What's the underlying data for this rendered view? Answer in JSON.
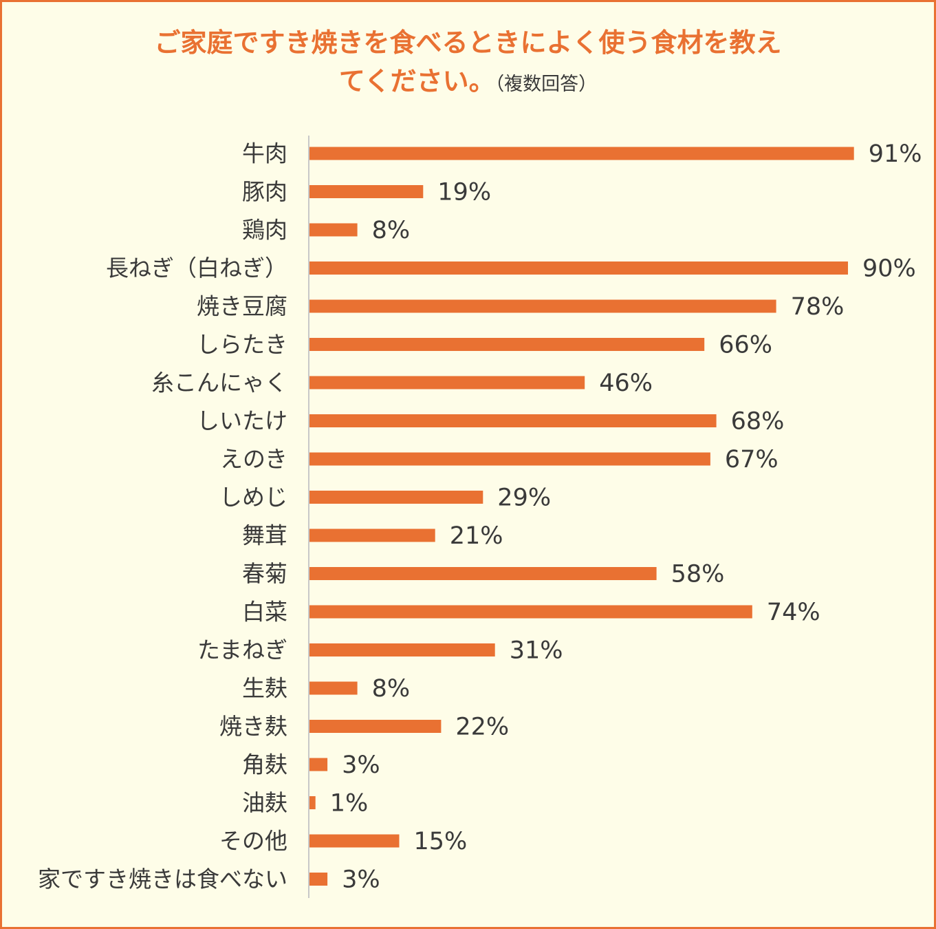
{
  "chart_data": {
    "type": "bar",
    "orientation": "horizontal",
    "title_line1": "ご家庭ですき焼きを食べるときによく使う食材を教え",
    "title_line2": "てください。",
    "title_note": "（複数回答）",
    "categories": [
      "牛肉",
      "豚肉",
      "鶏肉",
      "長ねぎ（白ねぎ）",
      "焼き豆腐",
      "しらたき",
      "糸こんにゃく",
      "しいたけ",
      "えのき",
      "しめじ",
      "舞茸",
      "春菊",
      "白菜",
      "たまねぎ",
      "生麸",
      "焼き麸",
      "角麸",
      "油麸",
      "その他",
      "家ですき焼きは食べない"
    ],
    "values": [
      91,
      19,
      8,
      90,
      78,
      66,
      46,
      68,
      67,
      29,
      21,
      58,
      74,
      31,
      8,
      22,
      3,
      1,
      15,
      3
    ],
    "value_labels": [
      "91%",
      "19%",
      "8%",
      "90%",
      "78%",
      "66%",
      "46%",
      "68%",
      "67%",
      "29%",
      "21%",
      "58%",
      "74%",
      "31%",
      "8%",
      "22%",
      "3%",
      "1%",
      "15%",
      "3%"
    ],
    "xlim": [
      0,
      100
    ],
    "grid": false,
    "legend": "none",
    "colors": {
      "bar": "#E97132",
      "title": "#E97132",
      "frame": "#E97132",
      "background": "#FEFDE8",
      "axis": "#c8c8c8",
      "text": "#3a3a3a"
    }
  }
}
